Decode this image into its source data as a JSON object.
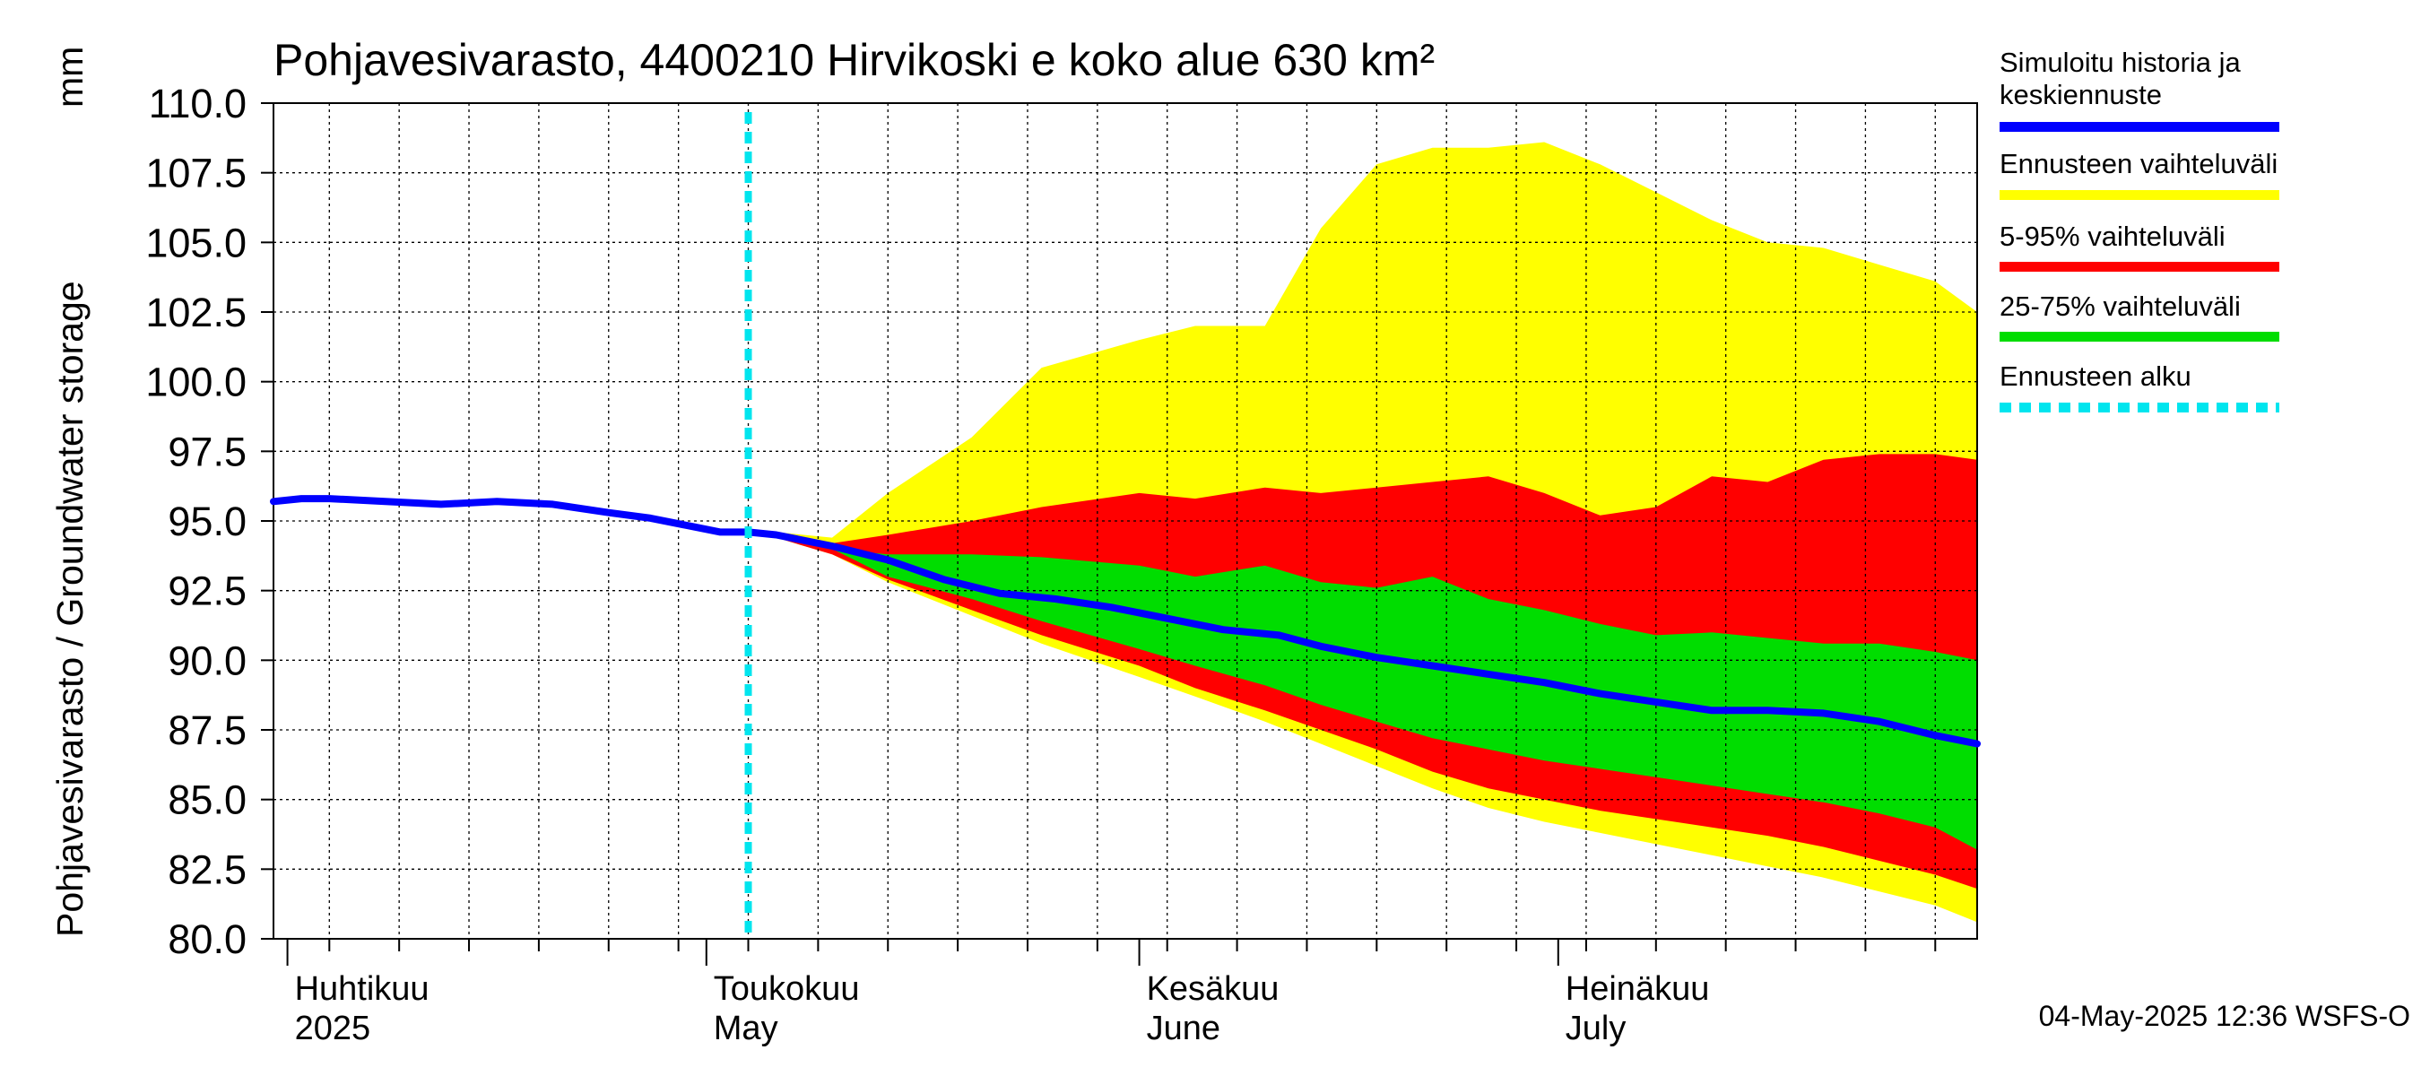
{
  "chart_data": {
    "type": "area",
    "title": "Pohjavesivarasto, 4400210 Hirvikoski e koko alue 630 km²",
    "ylabel": "Pohjavesivarasto / Groundwater storage",
    "yunit": "mm",
    "ylim": [
      80.0,
      110.0
    ],
    "yticks": [
      "110.0",
      "107.5",
      "105.0",
      "102.5",
      "100.0",
      "97.5",
      "95.0",
      "92.5",
      "90.0",
      "87.5",
      "85.0",
      "82.5",
      "80.0"
    ],
    "xlim": [
      "2025-03-31",
      "2025-07-31"
    ],
    "month_labels": [
      {
        "date": "2025-04-01",
        "fi": "Huhtikuu",
        "en": "2025"
      },
      {
        "date": "2025-05-01",
        "fi": "Toukokuu",
        "en": "May"
      },
      {
        "date": "2025-06-01",
        "fi": "Kesäkuu",
        "en": "June"
      },
      {
        "date": "2025-07-01",
        "fi": "Heinäkuu",
        "en": "July"
      }
    ],
    "grid": true,
    "legend_position": "right",
    "forecast_start": "2025-05-04",
    "series": [
      {
        "name": "Ennusteen vaihteluväli",
        "color": "#ffff00",
        "kind": "band",
        "x": [
          "2025-05-04",
          "2025-05-10",
          "2025-05-14",
          "2025-05-20",
          "2025-05-25",
          "2025-06-01",
          "2025-06-05",
          "2025-06-10",
          "2025-06-14",
          "2025-06-18",
          "2025-06-22",
          "2025-06-26",
          "2025-06-30",
          "2025-07-04",
          "2025-07-08",
          "2025-07-12",
          "2025-07-16",
          "2025-07-20",
          "2025-07-24",
          "2025-07-28",
          "2025-07-31"
        ],
        "upper": [
          94.7,
          94.4,
          96.0,
          98.0,
          100.5,
          101.5,
          102.0,
          102.0,
          105.5,
          107.8,
          108.4,
          108.4,
          108.6,
          107.8,
          106.8,
          105.8,
          105.0,
          104.8,
          104.2,
          103.6,
          102.5
        ],
        "lower": [
          94.7,
          93.8,
          92.8,
          91.6,
          90.6,
          89.4,
          88.7,
          87.8,
          87.0,
          86.2,
          85.4,
          84.7,
          84.2,
          83.8,
          83.4,
          83.0,
          82.6,
          82.2,
          81.7,
          81.2,
          80.6
        ]
      },
      {
        "name": "5-95% vaihteluväli",
        "color": "#ff0000",
        "kind": "band",
        "x": [
          "2025-05-04",
          "2025-05-10",
          "2025-05-14",
          "2025-05-20",
          "2025-05-25",
          "2025-06-01",
          "2025-06-05",
          "2025-06-10",
          "2025-06-14",
          "2025-06-18",
          "2025-06-22",
          "2025-06-26",
          "2025-06-30",
          "2025-07-04",
          "2025-07-08",
          "2025-07-12",
          "2025-07-16",
          "2025-07-20",
          "2025-07-24",
          "2025-07-28",
          "2025-07-31"
        ],
        "upper": [
          94.7,
          94.2,
          94.5,
          95.0,
          95.5,
          96.0,
          95.8,
          96.2,
          96.0,
          96.2,
          96.4,
          96.6,
          96.0,
          95.2,
          95.5,
          96.6,
          96.4,
          97.2,
          97.4,
          97.4,
          97.2
        ],
        "lower": [
          94.7,
          93.8,
          92.9,
          91.8,
          90.9,
          89.8,
          89.0,
          88.2,
          87.5,
          86.8,
          86.0,
          85.4,
          85.0,
          84.6,
          84.3,
          84.0,
          83.7,
          83.3,
          82.8,
          82.3,
          81.8
        ]
      },
      {
        "name": "25-75% vaihteluväli",
        "color": "#00dd00",
        "kind": "band",
        "x": [
          "2025-05-04",
          "2025-05-10",
          "2025-05-14",
          "2025-05-20",
          "2025-05-25",
          "2025-06-01",
          "2025-06-05",
          "2025-06-10",
          "2025-06-14",
          "2025-06-18",
          "2025-06-22",
          "2025-06-26",
          "2025-06-30",
          "2025-07-04",
          "2025-07-08",
          "2025-07-12",
          "2025-07-16",
          "2025-07-20",
          "2025-07-24",
          "2025-07-28",
          "2025-07-31"
        ],
        "upper": [
          94.7,
          94.0,
          93.8,
          93.8,
          93.7,
          93.4,
          93.0,
          93.4,
          92.8,
          92.6,
          93.0,
          92.2,
          91.8,
          91.3,
          90.9,
          91.0,
          90.8,
          90.6,
          90.6,
          90.3,
          90.0
        ],
        "lower": [
          94.7,
          94.0,
          93.0,
          92.2,
          91.4,
          90.4,
          89.8,
          89.1,
          88.4,
          87.8,
          87.2,
          86.8,
          86.4,
          86.1,
          85.8,
          85.5,
          85.2,
          84.9,
          84.5,
          84.0,
          83.2
        ]
      },
      {
        "name": "Simuloitu historia ja keskiennuste",
        "color": "#0000ff",
        "kind": "line",
        "x": [
          "2025-03-31",
          "2025-04-02",
          "2025-04-04",
          "2025-04-08",
          "2025-04-12",
          "2025-04-16",
          "2025-04-20",
          "2025-04-24",
          "2025-04-27",
          "2025-04-30",
          "2025-05-02",
          "2025-05-04",
          "2025-05-06",
          "2025-05-10",
          "2025-05-14",
          "2025-05-18",
          "2025-05-22",
          "2025-05-26",
          "2025-05-30",
          "2025-06-03",
          "2025-06-07",
          "2025-06-11",
          "2025-06-14",
          "2025-06-18",
          "2025-06-22",
          "2025-06-26",
          "2025-06-30",
          "2025-07-04",
          "2025-07-08",
          "2025-07-12",
          "2025-07-16",
          "2025-07-20",
          "2025-07-24",
          "2025-07-28",
          "2025-07-31"
        ],
        "values": [
          95.7,
          95.8,
          95.8,
          95.7,
          95.6,
          95.7,
          95.6,
          95.3,
          95.1,
          94.8,
          94.6,
          94.6,
          94.5,
          94.1,
          93.6,
          92.9,
          92.4,
          92.2,
          91.9,
          91.5,
          91.1,
          90.9,
          90.5,
          90.1,
          89.8,
          89.5,
          89.2,
          88.8,
          88.5,
          88.2,
          88.2,
          88.1,
          87.8,
          87.3,
          87.0
        ]
      },
      {
        "name": "Ennusteen alku",
        "color": "#00e5ee",
        "kind": "vline",
        "x": "2025-05-04"
      }
    ]
  },
  "legend": [
    {
      "label": "Simuloitu historia ja keskiennuste",
      "color": "#0000ff",
      "style": "solid"
    },
    {
      "label": "Ennusteen vaihteluväli",
      "color": "#ffff00",
      "style": "solid"
    },
    {
      "label": "5-95% vaihteluväli",
      "color": "#ff0000",
      "style": "solid"
    },
    {
      "label": "25-75% vaihteluväli",
      "color": "#00dd00",
      "style": "solid"
    },
    {
      "label": "Ennusteen alku",
      "color": "#00e5ee",
      "style": "dashed"
    }
  ],
  "footer": {
    "timestamp": "04-May-2025 12:36 WSFS-O"
  }
}
